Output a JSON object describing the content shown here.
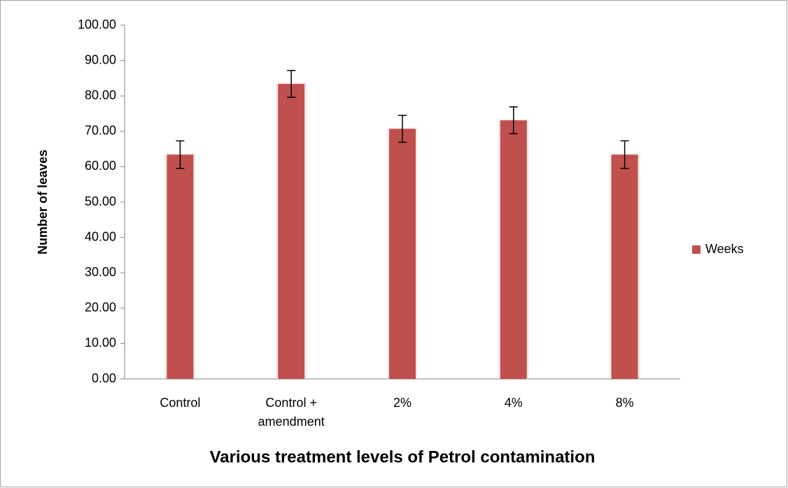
{
  "chart_data": {
    "type": "bar",
    "x_label": "Various treatment levels of Petrol contamination",
    "y_label": "Number of leaves",
    "categories": [
      "Control",
      "Control + amendment",
      "2%",
      "4%",
      "8%"
    ],
    "series": [
      {
        "name": "Weeks",
        "color": "#c0504d",
        "values": [
          63.4,
          83.4,
          70.7,
          73.1,
          63.4
        ],
        "errors": [
          3.9,
          3.8,
          3.8,
          3.8,
          3.9
        ]
      }
    ],
    "ylim": [
      0,
      100
    ],
    "yticks": [
      {
        "value": 0,
        "label": "0.00"
      },
      {
        "value": 10,
        "label": "10.00"
      },
      {
        "value": 20,
        "label": "20.00"
      },
      {
        "value": 30,
        "label": "30.00"
      },
      {
        "value": 40,
        "label": "40.00"
      },
      {
        "value": 50,
        "label": "50.00"
      },
      {
        "value": 60,
        "label": "60.00"
      },
      {
        "value": 70,
        "label": "70.00"
      },
      {
        "value": 80,
        "label": "80.00"
      },
      {
        "value": 90,
        "label": "90.00"
      },
      {
        "value": 100,
        "label": "100.00"
      }
    ],
    "grid": false,
    "legend": "right"
  }
}
